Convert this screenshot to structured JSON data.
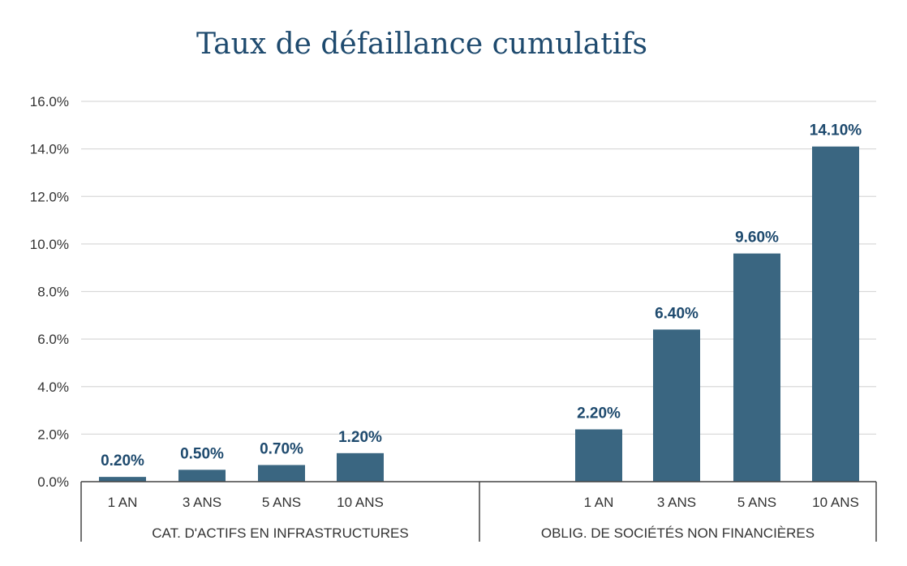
{
  "chart_data": {
    "type": "bar",
    "title": "Taux de défaillance cumulatifs",
    "y_tick_labels": [
      "0.0%",
      "2.0%",
      "4.0%",
      "6.0%",
      "8.0%",
      "10.0%",
      "12.0%",
      "14.0%",
      "16.0%"
    ],
    "y_tick_values": [
      0,
      2,
      4,
      6,
      8,
      10,
      12,
      14,
      16
    ],
    "ylim": [
      0,
      16
    ],
    "grid": true,
    "bar_color": "#3a6681",
    "label_color": "#1e4a6e",
    "groups": [
      {
        "name": "CAT. D'ACTIFS EN INFRASTRUCTURES",
        "categories": [
          "1 AN",
          "3 ANS",
          "5 ANS",
          "10 ANS"
        ],
        "values": [
          0.2,
          0.5,
          0.7,
          1.2
        ],
        "labels": [
          "0.20%",
          "0.50%",
          "0.70%",
          "1.20%"
        ]
      },
      {
        "name": "OBLIG. DE SOCIÉTÉS NON FINANCIÈRES",
        "categories": [
          "1 AN",
          "3 ANS",
          "5 ANS",
          "10 ANS"
        ],
        "values": [
          2.2,
          6.4,
          9.6,
          14.1
        ],
        "labels": [
          "2.20%",
          "6.40%",
          "9.60%",
          "14.10%"
        ]
      }
    ]
  }
}
